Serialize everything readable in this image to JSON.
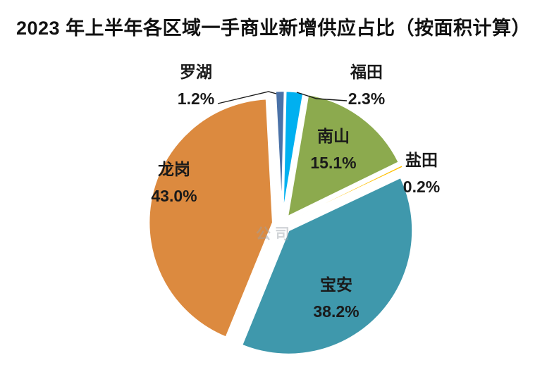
{
  "title": "2023 年上半年各区域一手商业新增供应占比（按面积计算）",
  "watermark": "公司",
  "chart_data": {
    "type": "pie",
    "title": "2023 年上半年各区域一手商业新增供应占比（按面积计算）",
    "unit": "%",
    "exploded": true,
    "clockwise": true,
    "start_angle_deg": -3,
    "legend_position": "none",
    "label_format": "category name + percent",
    "slices": [
      {
        "key": "luohu",
        "name": "罗湖",
        "value": 1.2,
        "pct_label": "1.2%",
        "color": "#4A72A8",
        "label_position": "outside-top-left"
      },
      {
        "key": "futian",
        "name": "福田",
        "value": 2.3,
        "pct_label": "2.3%",
        "color": "#00B0F0",
        "label_position": "outside-top-right"
      },
      {
        "key": "nanshan",
        "name": "南山",
        "value": 15.1,
        "pct_label": "15.1%",
        "color": "#8CAA4E",
        "label_position": "inside"
      },
      {
        "key": "yantian",
        "name": "盐田",
        "value": 0.2,
        "pct_label": "0.2%",
        "color": "#FFC000",
        "label_position": "outside-right"
      },
      {
        "key": "baoan",
        "name": "宝安",
        "value": 38.2,
        "pct_label": "38.2%",
        "color": "#3F98AC",
        "label_position": "inside"
      },
      {
        "key": "longgang",
        "name": "龙岗",
        "value": 43.0,
        "pct_label": "43.0%",
        "color": "#DC8A3F",
        "label_position": "inside"
      }
    ]
  }
}
